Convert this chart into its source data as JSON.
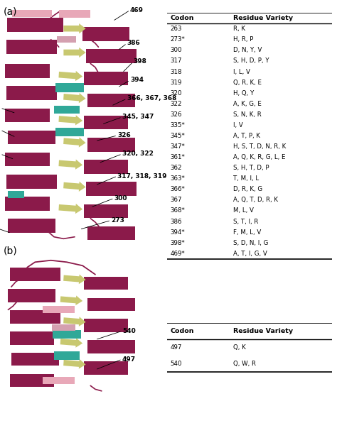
{
  "panel_a_label": "(a)",
  "panel_b_label": "(b)",
  "table_a_header": [
    "Codon",
    "Residue Variety"
  ],
  "table_a_rows": [
    [
      "263",
      "R, K"
    ],
    [
      "273*",
      "H, R, P"
    ],
    [
      "300",
      "D, N, Y, V"
    ],
    [
      "317",
      "S, H, D, P, Y"
    ],
    [
      "318",
      "I, L, V"
    ],
    [
      "319",
      "Q, R, K, E"
    ],
    [
      "320",
      "H, Q, Y"
    ],
    [
      "322",
      "A, K, G, E"
    ],
    [
      "326",
      "S, N, K, R"
    ],
    [
      "335*",
      "I, V"
    ],
    [
      "345*",
      "A, T, P, K"
    ],
    [
      "347*",
      "H, S, T, D, N, R, K"
    ],
    [
      "361*",
      "A, Q, K, R, G, L, E"
    ],
    [
      "362",
      "S, H, T, D, P"
    ],
    [
      "363*",
      "T, M, I, L"
    ],
    [
      "366*",
      "D, R, K, G"
    ],
    [
      "367",
      "A, Q, T, D, R, K"
    ],
    [
      "368*",
      "M, L, V"
    ],
    [
      "386",
      "S, T, I, R"
    ],
    [
      "394*",
      "F, M, L, V"
    ],
    [
      "398*",
      "S, D, N, I, G"
    ],
    [
      "469*",
      "A, T, I, G, V"
    ]
  ],
  "table_b_header": [
    "Codon",
    "Residue Variety"
  ],
  "table_b_rows": [
    [
      "497",
      "Q, K"
    ],
    [
      "540",
      "Q, W, R"
    ]
  ],
  "bg_color": "#ffffff",
  "text_color": "#000000",
  "table_font_size": 6.2,
  "header_font_size": 6.8,
  "panel_label_font_size": 10,
  "mc": "#8B1A4A",
  "yc": "#C8C870",
  "tc": "#30A898",
  "pc": "#E8A8B8",
  "lc": "#D4A0B0"
}
